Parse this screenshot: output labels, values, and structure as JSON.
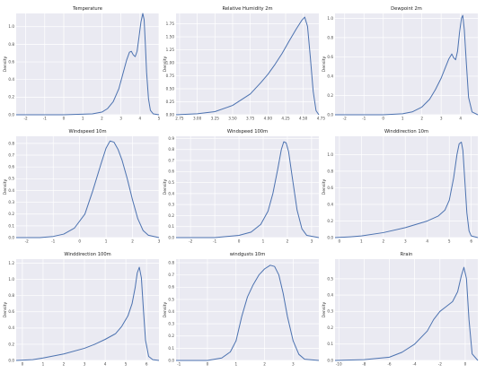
{
  "chart_data": [
    {
      "type": "line",
      "title": "Temperature",
      "ylabel": "Density",
      "xlabel": "",
      "xlim": [
        -2.5,
        5.0
      ],
      "ylim": [
        0,
        1.15
      ],
      "xticks": [
        "-2",
        "-1",
        "0",
        "1",
        "2",
        "3",
        "4",
        "5"
      ],
      "yticks": [
        "0.0",
        "0.2",
        "0.4",
        "0.6",
        "0.8",
        "1.0"
      ],
      "series": [
        {
          "x": [
            -2.5,
            0.0,
            1.5,
            2.0,
            2.3,
            2.6,
            2.9,
            3.1,
            3.3,
            3.45,
            3.55,
            3.65,
            3.75,
            3.85,
            3.95,
            4.05,
            4.15,
            4.22,
            4.28,
            4.35,
            4.45,
            4.55,
            4.7,
            5.0
          ],
          "y": [
            0.0,
            0.0,
            0.01,
            0.03,
            0.07,
            0.15,
            0.3,
            0.46,
            0.62,
            0.71,
            0.72,
            0.68,
            0.66,
            0.72,
            0.88,
            1.05,
            1.15,
            1.08,
            0.82,
            0.48,
            0.18,
            0.05,
            0.01,
            0.0
          ]
        }
      ]
    },
    {
      "type": "line",
      "title": "Relative Humidity 2m",
      "ylabel": "Density",
      "xlabel": "",
      "xlim": [
        2.7,
        4.72
      ],
      "ylim": [
        0,
        1.95
      ],
      "xticks": [
        "2.75",
        "3.00",
        "3.25",
        "3.50",
        "3.75",
        "4.00",
        "4.25",
        "4.50",
        "4.75"
      ],
      "yticks": [
        "0.00",
        "0.25",
        "0.50",
        "0.75",
        "1.00",
        "1.25",
        "1.50",
        "1.75"
      ],
      "series": [
        {
          "x": [
            2.7,
            3.0,
            3.25,
            3.5,
            3.75,
            3.9,
            4.0,
            4.1,
            4.2,
            4.3,
            4.4,
            4.48,
            4.52,
            4.56,
            4.6,
            4.64,
            4.68,
            4.72
          ],
          "y": [
            0.0,
            0.02,
            0.06,
            0.18,
            0.4,
            0.62,
            0.78,
            0.97,
            1.18,
            1.42,
            1.65,
            1.82,
            1.88,
            1.7,
            1.1,
            0.45,
            0.08,
            0.0
          ]
        }
      ]
    },
    {
      "type": "line",
      "title": "Dewpoint 2m",
      "ylabel": "Density",
      "xlabel": "",
      "xlim": [
        -2.5,
        4.9
      ],
      "ylim": [
        0,
        1.05
      ],
      "xticks": [
        "-2",
        "-1",
        "0",
        "1",
        "2",
        "3",
        "4"
      ],
      "yticks": [
        "0.0",
        "0.2",
        "0.4",
        "0.6",
        "0.8",
        "1.0"
      ],
      "series": [
        {
          "x": [
            -2.5,
            0.0,
            1.0,
            1.5,
            2.0,
            2.4,
            2.7,
            3.0,
            3.2,
            3.4,
            3.55,
            3.65,
            3.75,
            3.85,
            3.95,
            4.05,
            4.12,
            4.2,
            4.3,
            4.42,
            4.6,
            4.9
          ],
          "y": [
            0.0,
            0.0,
            0.01,
            0.03,
            0.08,
            0.16,
            0.26,
            0.38,
            0.48,
            0.58,
            0.63,
            0.59,
            0.57,
            0.66,
            0.85,
            1.0,
            1.03,
            0.88,
            0.55,
            0.18,
            0.03,
            0.0
          ]
        }
      ]
    },
    {
      "type": "line",
      "title": "Windspeed 10m",
      "ylabel": "Density",
      "xlabel": "",
      "xlim": [
        -2.4,
        3.0
      ],
      "ylim": [
        0,
        0.86
      ],
      "xticks": [
        "-2",
        "-1",
        "0",
        "1",
        "2",
        "3"
      ],
      "yticks": [
        "0.0",
        "0.1",
        "0.2",
        "0.3",
        "0.4",
        "0.5",
        "0.6",
        "0.7",
        "0.8"
      ],
      "series": [
        {
          "x": [
            -2.4,
            -1.5,
            -1.0,
            -0.6,
            -0.2,
            0.2,
            0.5,
            0.8,
            1.0,
            1.15,
            1.3,
            1.45,
            1.6,
            1.8,
            2.0,
            2.2,
            2.4,
            2.6,
            3.0
          ],
          "y": [
            0.0,
            0.0,
            0.01,
            0.03,
            0.08,
            0.2,
            0.4,
            0.62,
            0.76,
            0.82,
            0.81,
            0.75,
            0.66,
            0.5,
            0.32,
            0.16,
            0.06,
            0.02,
            0.0
          ]
        }
      ]
    },
    {
      "type": "line",
      "title": "Windspeed 100m",
      "ylabel": "Density",
      "xlabel": "",
      "xlim": [
        -2.6,
        3.3
      ],
      "ylim": [
        0,
        0.92
      ],
      "xticks": [
        "-2",
        "-1",
        "0",
        "1",
        "2",
        "3"
      ],
      "yticks": [
        "0.0",
        "0.1",
        "0.2",
        "0.3",
        "0.4",
        "0.5",
        "0.6",
        "0.7",
        "0.8",
        "0.9"
      ],
      "series": [
        {
          "x": [
            -2.6,
            -1.0,
            0.0,
            0.5,
            0.9,
            1.2,
            1.4,
            1.6,
            1.75,
            1.85,
            1.95,
            2.05,
            2.2,
            2.4,
            2.6,
            2.8,
            3.3
          ],
          "y": [
            0.0,
            0.0,
            0.02,
            0.05,
            0.12,
            0.24,
            0.4,
            0.62,
            0.8,
            0.87,
            0.86,
            0.78,
            0.55,
            0.25,
            0.08,
            0.02,
            0.0
          ]
        }
      ]
    },
    {
      "type": "line",
      "title": "Winddirection 10m",
      "ylabel": "Density",
      "xlabel": "",
      "xlim": [
        -0.2,
        6.3
      ],
      "ylim": [
        0,
        1.22
      ],
      "xticks": [
        "0",
        "1",
        "2",
        "3",
        "4",
        "5",
        "6"
      ],
      "yticks": [
        "0.0",
        "0.2",
        "0.4",
        "0.6",
        "0.8",
        "1.0"
      ],
      "series": [
        {
          "x": [
            -0.2,
            0.5,
            1.0,
            2.0,
            3.0,
            4.0,
            4.5,
            4.8,
            5.0,
            5.2,
            5.35,
            5.45,
            5.55,
            5.62,
            5.7,
            5.8,
            5.9,
            6.0,
            6.3
          ],
          "y": [
            0.0,
            0.01,
            0.02,
            0.06,
            0.12,
            0.2,
            0.26,
            0.33,
            0.45,
            0.72,
            1.0,
            1.13,
            1.15,
            1.05,
            0.72,
            0.3,
            0.08,
            0.02,
            0.0
          ]
        }
      ]
    },
    {
      "type": "line",
      "title": "Winddirection 100m",
      "ylabel": "Density",
      "xlabel": "",
      "xlim": [
        -0.3,
        6.6
      ],
      "ylim": [
        0,
        1.25
      ],
      "xticks": [
        "0",
        "1",
        "2",
        "3",
        "4",
        "5",
        "6"
      ],
      "yticks": [
        "0.0",
        "0.2",
        "0.4",
        "0.6",
        "0.8",
        "1.0",
        "1.2"
      ],
      "series": [
        {
          "x": [
            -0.3,
            0.5,
            1.0,
            2.0,
            3.0,
            3.5,
            4.0,
            4.5,
            4.8,
            5.1,
            5.3,
            5.45,
            5.55,
            5.65,
            5.75,
            5.85,
            5.95,
            6.1,
            6.3,
            6.6
          ],
          "y": [
            0.0,
            0.01,
            0.03,
            0.08,
            0.15,
            0.2,
            0.26,
            0.33,
            0.42,
            0.55,
            0.7,
            0.9,
            1.08,
            1.15,
            1.02,
            0.62,
            0.25,
            0.05,
            0.01,
            0.0
          ]
        }
      ]
    },
    {
      "type": "line",
      "title": "windgusts 10m",
      "ylabel": "Density",
      "xlabel": "",
      "xlim": [
        -1.1,
        3.9
      ],
      "ylim": [
        0,
        0.83
      ],
      "xticks": [
        "-1",
        "0",
        "1",
        "2",
        "3"
      ],
      "yticks": [
        "0.0",
        "0.1",
        "0.2",
        "0.3",
        "0.4",
        "0.5",
        "0.6",
        "0.7",
        "0.8"
      ],
      "series": [
        {
          "x": [
            -1.1,
            0.0,
            0.5,
            0.8,
            1.0,
            1.2,
            1.4,
            1.6,
            1.8,
            2.0,
            2.2,
            2.35,
            2.5,
            2.65,
            2.8,
            3.0,
            3.2,
            3.4,
            3.9
          ],
          "y": [
            0.0,
            0.0,
            0.02,
            0.07,
            0.16,
            0.36,
            0.52,
            0.62,
            0.7,
            0.75,
            0.78,
            0.77,
            0.7,
            0.55,
            0.36,
            0.16,
            0.05,
            0.01,
            0.0
          ]
        }
      ]
    },
    {
      "type": "line",
      "title": "Rrain",
      "ylabel": "Density",
      "xlabel": "",
      "xlim": [
        -10.3,
        1.0
      ],
      "ylim": [
        0,
        0.62
      ],
      "xticks": [
        "-10",
        "-8",
        "-6",
        "-4",
        "-2",
        "0"
      ],
      "yticks": [
        "0.0",
        "0.1",
        "0.2",
        "0.3",
        "0.4",
        "0.5"
      ],
      "series": [
        {
          "x": [
            -10.3,
            -8.0,
            -6.0,
            -5.0,
            -4.0,
            -3.0,
            -2.5,
            -2.0,
            -1.5,
            -1.0,
            -0.6,
            -0.3,
            -0.1,
            0.1,
            0.3,
            0.55,
            1.0
          ],
          "y": [
            0.0,
            0.005,
            0.02,
            0.05,
            0.1,
            0.18,
            0.25,
            0.3,
            0.33,
            0.36,
            0.42,
            0.52,
            0.57,
            0.5,
            0.25,
            0.04,
            0.0
          ]
        }
      ]
    }
  ]
}
